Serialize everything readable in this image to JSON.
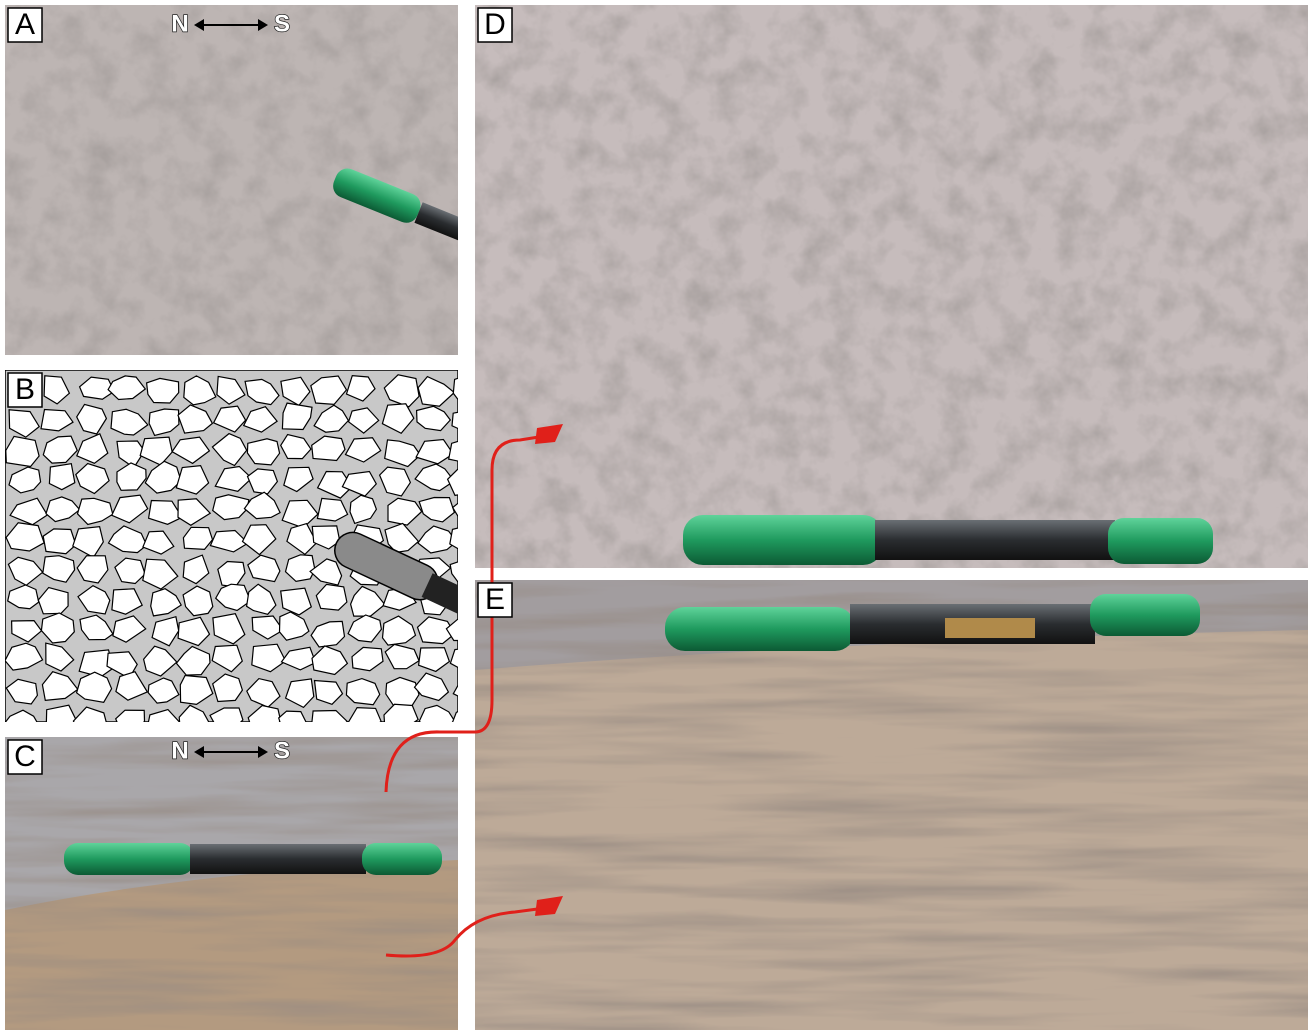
{
  "panels": [
    {
      "label": "A",
      "compass": {
        "north": "N",
        "south": "S"
      }
    },
    {
      "label": "B"
    },
    {
      "label": "C",
      "compass": {
        "north": "N",
        "south": "S"
      }
    },
    {
      "label": "D"
    },
    {
      "label": "E"
    }
  ]
}
